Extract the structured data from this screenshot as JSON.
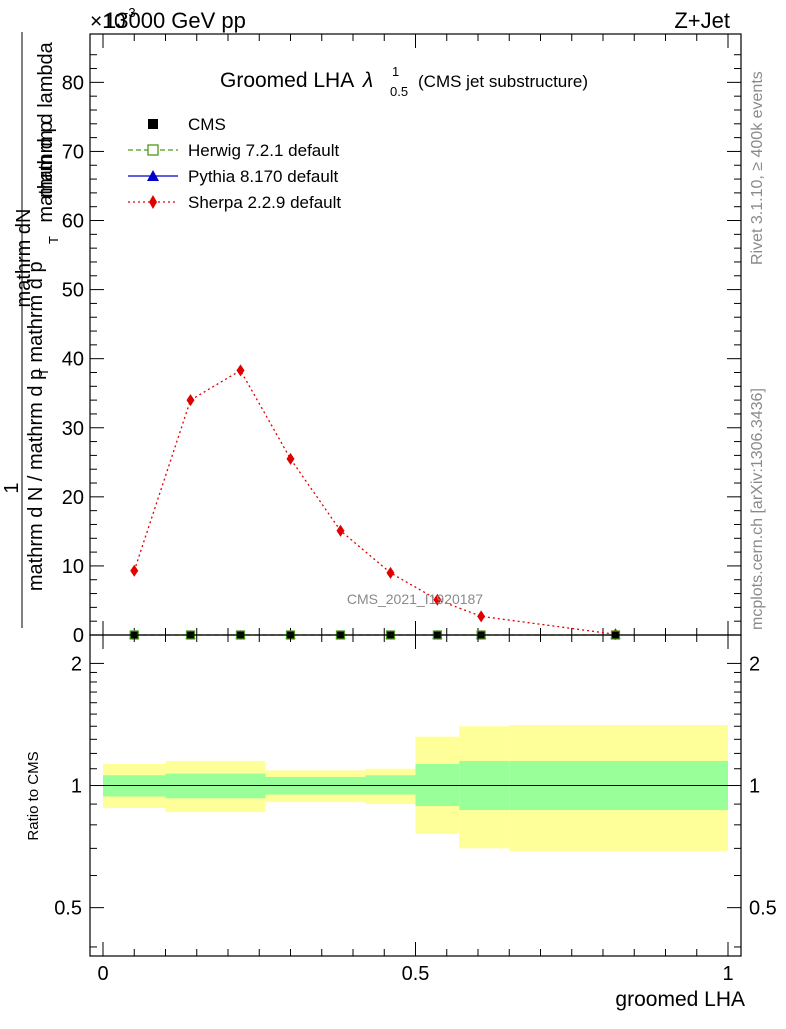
{
  "header": {
    "left": "13000 GeV pp",
    "right": "Z+Jet",
    "exponent": "×10",
    "exponent_power": "-3"
  },
  "side_labels": {
    "rivet": "Rivet 3.1.10, ≥ 400k events",
    "mcplots": "mcplots.cern.ch [arXiv:1306.3436]"
  },
  "watermark": "CMS_2021_I1920187",
  "chart_data": [
    {
      "type": "line",
      "title": "Groomed LHA",
      "title_symbol": "λ",
      "title_sup": "1",
      "title_sub": "0.5",
      "subtitle": "(CMS jet substructure)",
      "ylabel_numerator": "mathrm dN",
      "ylabel_numerator_prefix": "1",
      "ylabel_denominator": "mathrm d N / mathrm d p",
      "ylabel_denominator_sub": "T",
      "ylabel_numer_full": "mathrm d p",
      "ylabel_numer_sub": "T",
      "ylabel_numer_rest": "mathrm d lambda",
      "ylabel_denom_rest": "mathrm d p",
      "xlim": [
        0,
        1
      ],
      "ylim": [
        0,
        87
      ],
      "y_ticks": [
        0,
        10,
        20,
        30,
        40,
        50,
        60,
        70,
        80
      ],
      "y_tick_labels": [
        "0",
        "10",
        "20",
        "30",
        "40",
        "50",
        "60",
        "70",
        "80"
      ],
      "legend_position": "top-left",
      "legend": [
        {
          "name": "CMS",
          "marker": "square-filled",
          "color": "#000000"
        },
        {
          "name": "Herwig 7.2.1 default",
          "marker": "square-open",
          "color": "#4a9a1a",
          "dash": "dashed"
        },
        {
          "name": "Pythia 8.170 default",
          "marker": "triangle",
          "color": "#0000cc",
          "dash": "solid"
        },
        {
          "name": "Sherpa 2.2.9 default",
          "marker": "diamond",
          "color": "#e00000",
          "dash": "dotted"
        }
      ],
      "series": [
        {
          "name": "CMS",
          "x": [
            0.05,
            0.14,
            0.22,
            0.3,
            0.38,
            0.46,
            0.535,
            0.605,
            0.82
          ],
          "y": [
            0,
            0,
            0,
            0,
            0,
            0,
            0,
            0,
            0
          ]
        },
        {
          "name": "Herwig 7.2.1 default",
          "x": [
            0.05,
            0.14,
            0.22,
            0.3,
            0.38,
            0.46,
            0.535,
            0.605,
            0.82
          ],
          "y": [
            0,
            0,
            0,
            0,
            0,
            0,
            0,
            0,
            0
          ]
        },
        {
          "name": "Pythia 8.170 default",
          "x": [
            0.05,
            0.14,
            0.22,
            0.3,
            0.38,
            0.46,
            0.535,
            0.605,
            0.82
          ],
          "y": [
            0,
            0,
            0,
            0,
            0,
            0,
            0,
            0,
            0
          ]
        },
        {
          "name": "Sherpa 2.2.9 default",
          "x": [
            0.05,
            0.14,
            0.22,
            0.3,
            0.38,
            0.46,
            0.535,
            0.605,
            0.82
          ],
          "y": [
            9.3,
            34.0,
            38.3,
            25.5,
            15.1,
            9.0,
            5.1,
            2.7,
            0.1
          ]
        }
      ]
    },
    {
      "type": "area",
      "ylabel": "Ratio to CMS",
      "xlabel": "groomed LHA",
      "xlim": [
        0,
        1
      ],
      "ylim": [
        0.38,
        2.35
      ],
      "log_y": true,
      "y_ticks": [
        0.5,
        1,
        2
      ],
      "y_tick_labels": [
        "0.5",
        "1",
        "2"
      ],
      "x_ticks": [
        0,
        0.5,
        1
      ],
      "x_tick_labels": [
        "0",
        "0.5",
        "1"
      ],
      "reference_line": 1,
      "bins": [
        {
          "x_lo": 0.0,
          "x_hi": 0.1,
          "inner": [
            0.94,
            1.06
          ],
          "outer": [
            0.88,
            1.13
          ]
        },
        {
          "x_lo": 0.1,
          "x_hi": 0.26,
          "inner": [
            0.93,
            1.07
          ],
          "outer": [
            0.86,
            1.15
          ]
        },
        {
          "x_lo": 0.26,
          "x_hi": 0.42,
          "inner": [
            0.95,
            1.05
          ],
          "outer": [
            0.91,
            1.09
          ]
        },
        {
          "x_lo": 0.42,
          "x_hi": 0.5,
          "inner": [
            0.95,
            1.06
          ],
          "outer": [
            0.9,
            1.1
          ]
        },
        {
          "x_lo": 0.5,
          "x_hi": 0.57,
          "inner": [
            0.89,
            1.13
          ],
          "outer": [
            0.76,
            1.32
          ]
        },
        {
          "x_lo": 0.57,
          "x_hi": 0.65,
          "inner": [
            0.87,
            1.15
          ],
          "outer": [
            0.7,
            1.4
          ]
        },
        {
          "x_lo": 0.65,
          "x_hi": 1.0,
          "inner": [
            0.87,
            1.15
          ],
          "outer": [
            0.69,
            1.41
          ]
        }
      ]
    }
  ]
}
